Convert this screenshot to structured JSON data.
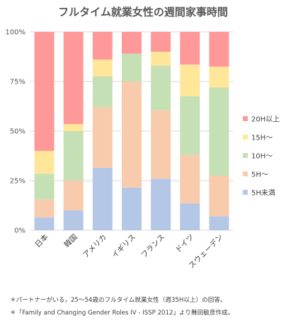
{
  "chart_data": {
    "type": "bar",
    "stacked": true,
    "title": "フルタイム就業女性の週間家事時間",
    "categories": [
      "日本",
      "韓国",
      "アメリカ",
      "イギリス",
      "フランス",
      "ドイツ",
      "スウェーデン"
    ],
    "y_ticks": [
      "0%",
      "25%",
      "50%",
      "75%",
      "100%"
    ],
    "ylim": [
      0,
      100
    ],
    "grid": true,
    "legend_position": "right",
    "series": [
      {
        "name": "5H未満",
        "color": "#b4c7e7",
        "values": [
          6.5,
          10,
          31.5,
          21.5,
          26,
          13.5,
          7
        ]
      },
      {
        "name": "5H〜",
        "color": "#f8cbad",
        "values": [
          9,
          15,
          30.5,
          53.5,
          34.5,
          24.5,
          20.5
        ]
      },
      {
        "name": "10H〜",
        "color": "#c5e0b4",
        "values": [
          13,
          25,
          15.5,
          14,
          22.5,
          29.5,
          44.5
        ]
      },
      {
        "name": "15H〜",
        "color": "#ffe699",
        "values": [
          11.5,
          3.5,
          8.5,
          0,
          7,
          16,
          10.5
        ]
      },
      {
        "name": "20H以上",
        "color": "#ff9999",
        "values": [
          60,
          46.5,
          14,
          11,
          10,
          16.5,
          17.5
        ]
      }
    ],
    "legend_order": [
      "20H以上",
      "15H〜",
      "10H〜",
      "5H〜",
      "5H未満"
    ],
    "notes": [
      "＊パートナーがいる，25〜54歳のフルタイム就業女性（週35H以上）の回答。",
      "＊「Family and Changing Gender Roles IV - ISSP 2012」より舞田敏彦作成。"
    ]
  }
}
